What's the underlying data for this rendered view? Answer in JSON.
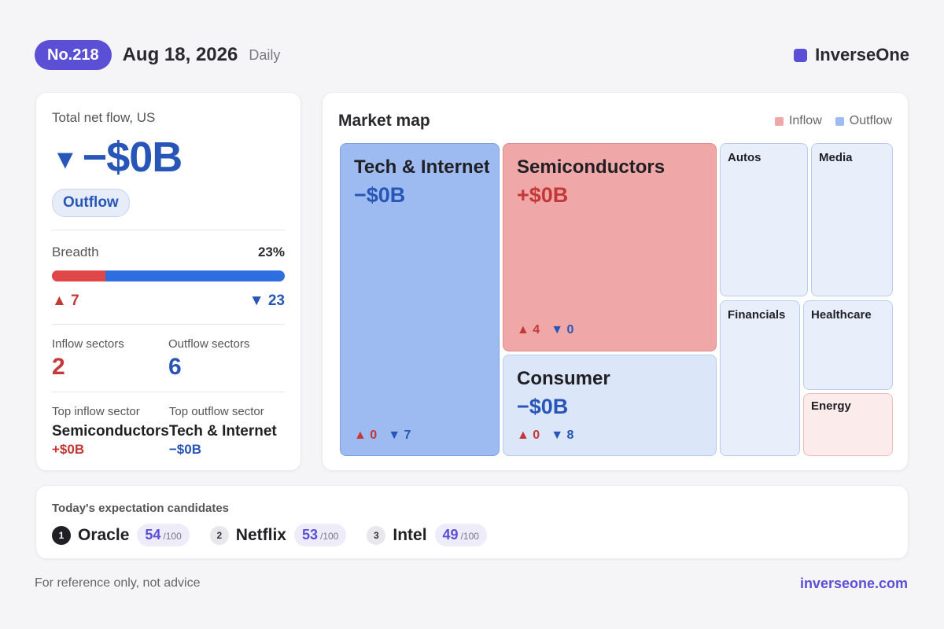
{
  "colors": {
    "accent": "#5b4fd6",
    "inflow": "#e04848",
    "outflow": "#2f6ee0"
  },
  "header": {
    "issue": "No.218",
    "date": "Aug 18, 2026",
    "frequency": "Daily",
    "brand": "InverseOne"
  },
  "summary": {
    "label": "Total net flow, US",
    "direction_icon": "down-triangle-icon",
    "value": "−$0B",
    "badge": "Outflow",
    "breadth_label": "Breadth",
    "breadth_pct_text": "23%",
    "breadth_fraction": 0.23,
    "up_count": "7",
    "down_count": "23",
    "inflow_sectors_label": "Inflow sectors",
    "inflow_sectors": "2",
    "outflow_sectors_label": "Outflow sectors",
    "outflow_sectors": "6",
    "top_inflow_label": "Top inflow sector",
    "top_inflow_name": "Semiconductors",
    "top_inflow_value": "+$0B",
    "top_outflow_label": "Top outflow sector",
    "top_outflow_name": "Tech & Internet",
    "top_outflow_value": "−$0B"
  },
  "map": {
    "title": "Market map",
    "legend_inflow": "Inflow",
    "legend_outflow": "Outflow",
    "tiles": [
      {
        "name": "Tech & Internet",
        "value": "−$0B",
        "up": "0",
        "down": "7",
        "flow": "outflow",
        "strength": "strong"
      },
      {
        "name": "Semiconductors",
        "value": "+$0B",
        "up": "4",
        "down": "0",
        "flow": "inflow",
        "strength": "strong"
      },
      {
        "name": "Consumer",
        "value": "−$0B",
        "up": "0",
        "down": "8",
        "flow": "outflow",
        "strength": "medium"
      },
      {
        "name": "Autos",
        "flow": "outflow",
        "strength": "light"
      },
      {
        "name": "Media",
        "flow": "outflow",
        "strength": "light"
      },
      {
        "name": "Financials",
        "flow": "outflow",
        "strength": "light"
      },
      {
        "name": "Healthcare",
        "flow": "outflow",
        "strength": "light"
      },
      {
        "name": "Energy",
        "flow": "inflow",
        "strength": "light"
      }
    ]
  },
  "expectations": {
    "title": "Today's expectation candidates",
    "denominator": "/100",
    "items": [
      {
        "rank": "1",
        "name": "Oracle",
        "score": "54"
      },
      {
        "rank": "2",
        "name": "Netflix",
        "score": "53"
      },
      {
        "rank": "3",
        "name": "Intel",
        "score": "49"
      }
    ]
  },
  "footer": {
    "disclaimer": "For reference only, not advice",
    "site": "inverseone.com"
  }
}
